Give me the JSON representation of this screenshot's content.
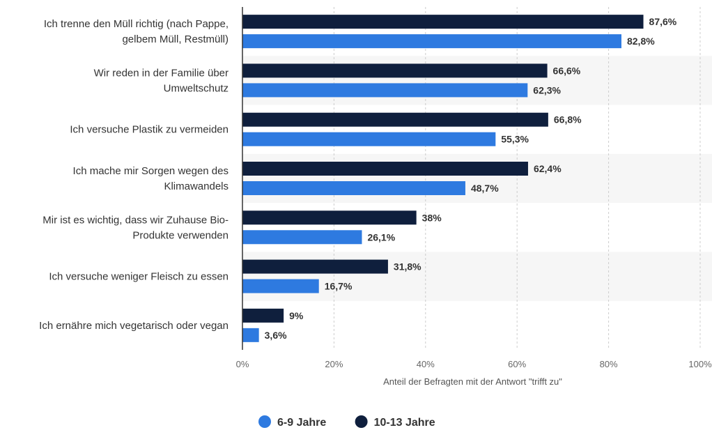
{
  "chart_data": {
    "type": "bar",
    "orientation": "horizontal",
    "categories": [
      [
        "Ich trenne den Müll richtig (nach Pappe,",
        "gelbem Müll, Restmüll)"
      ],
      [
        "Wir reden in der Familie über",
        "Umweltschutz"
      ],
      [
        "Ich versuche Plastik zu vermeiden"
      ],
      [
        "Ich mache mir Sorgen wegen des",
        "Klimawandels"
      ],
      [
        "Mir ist es wichtig, dass wir Zuhause Bio-",
        "Produkte verwenden"
      ],
      [
        "Ich versuche weniger Fleisch zu essen"
      ],
      [
        "Ich ernähre mich vegetarisch oder vegan"
      ]
    ],
    "series": [
      {
        "name": "10-13 Jahre",
        "color": "#0f1f3d",
        "values": [
          87.6,
          66.6,
          66.8,
          62.4,
          38,
          31.8,
          9
        ],
        "labels": [
          "87,6%",
          "66,6%",
          "66,8%",
          "62,4%",
          "38%",
          "31,8%",
          "9%"
        ]
      },
      {
        "name": "6-9 Jahre",
        "color": "#2e7ae0",
        "values": [
          82.8,
          62.3,
          55.3,
          48.7,
          26.1,
          16.7,
          3.6
        ],
        "labels": [
          "82,8%",
          "62,3%",
          "55,3%",
          "48,7%",
          "26,1%",
          "16,7%",
          "3,6%"
        ]
      }
    ],
    "xlim": [
      0,
      100
    ],
    "xticks": [
      0,
      20,
      40,
      60,
      80,
      100
    ],
    "xtick_labels": [
      "0%",
      "20%",
      "40%",
      "60%",
      "80%",
      "100%"
    ],
    "xlabel": "Anteil der Befragten mit der Antwort \"trifft zu\"",
    "ylabel": "",
    "grid": true,
    "legend": {
      "placement": "bottom-center",
      "items": [
        {
          "name": "6-9 Jahre",
          "color": "#2e7ae0"
        },
        {
          "name": "10-13 Jahre",
          "color": "#0f1f3d"
        }
      ]
    },
    "band_color": "#f6f6f6"
  }
}
